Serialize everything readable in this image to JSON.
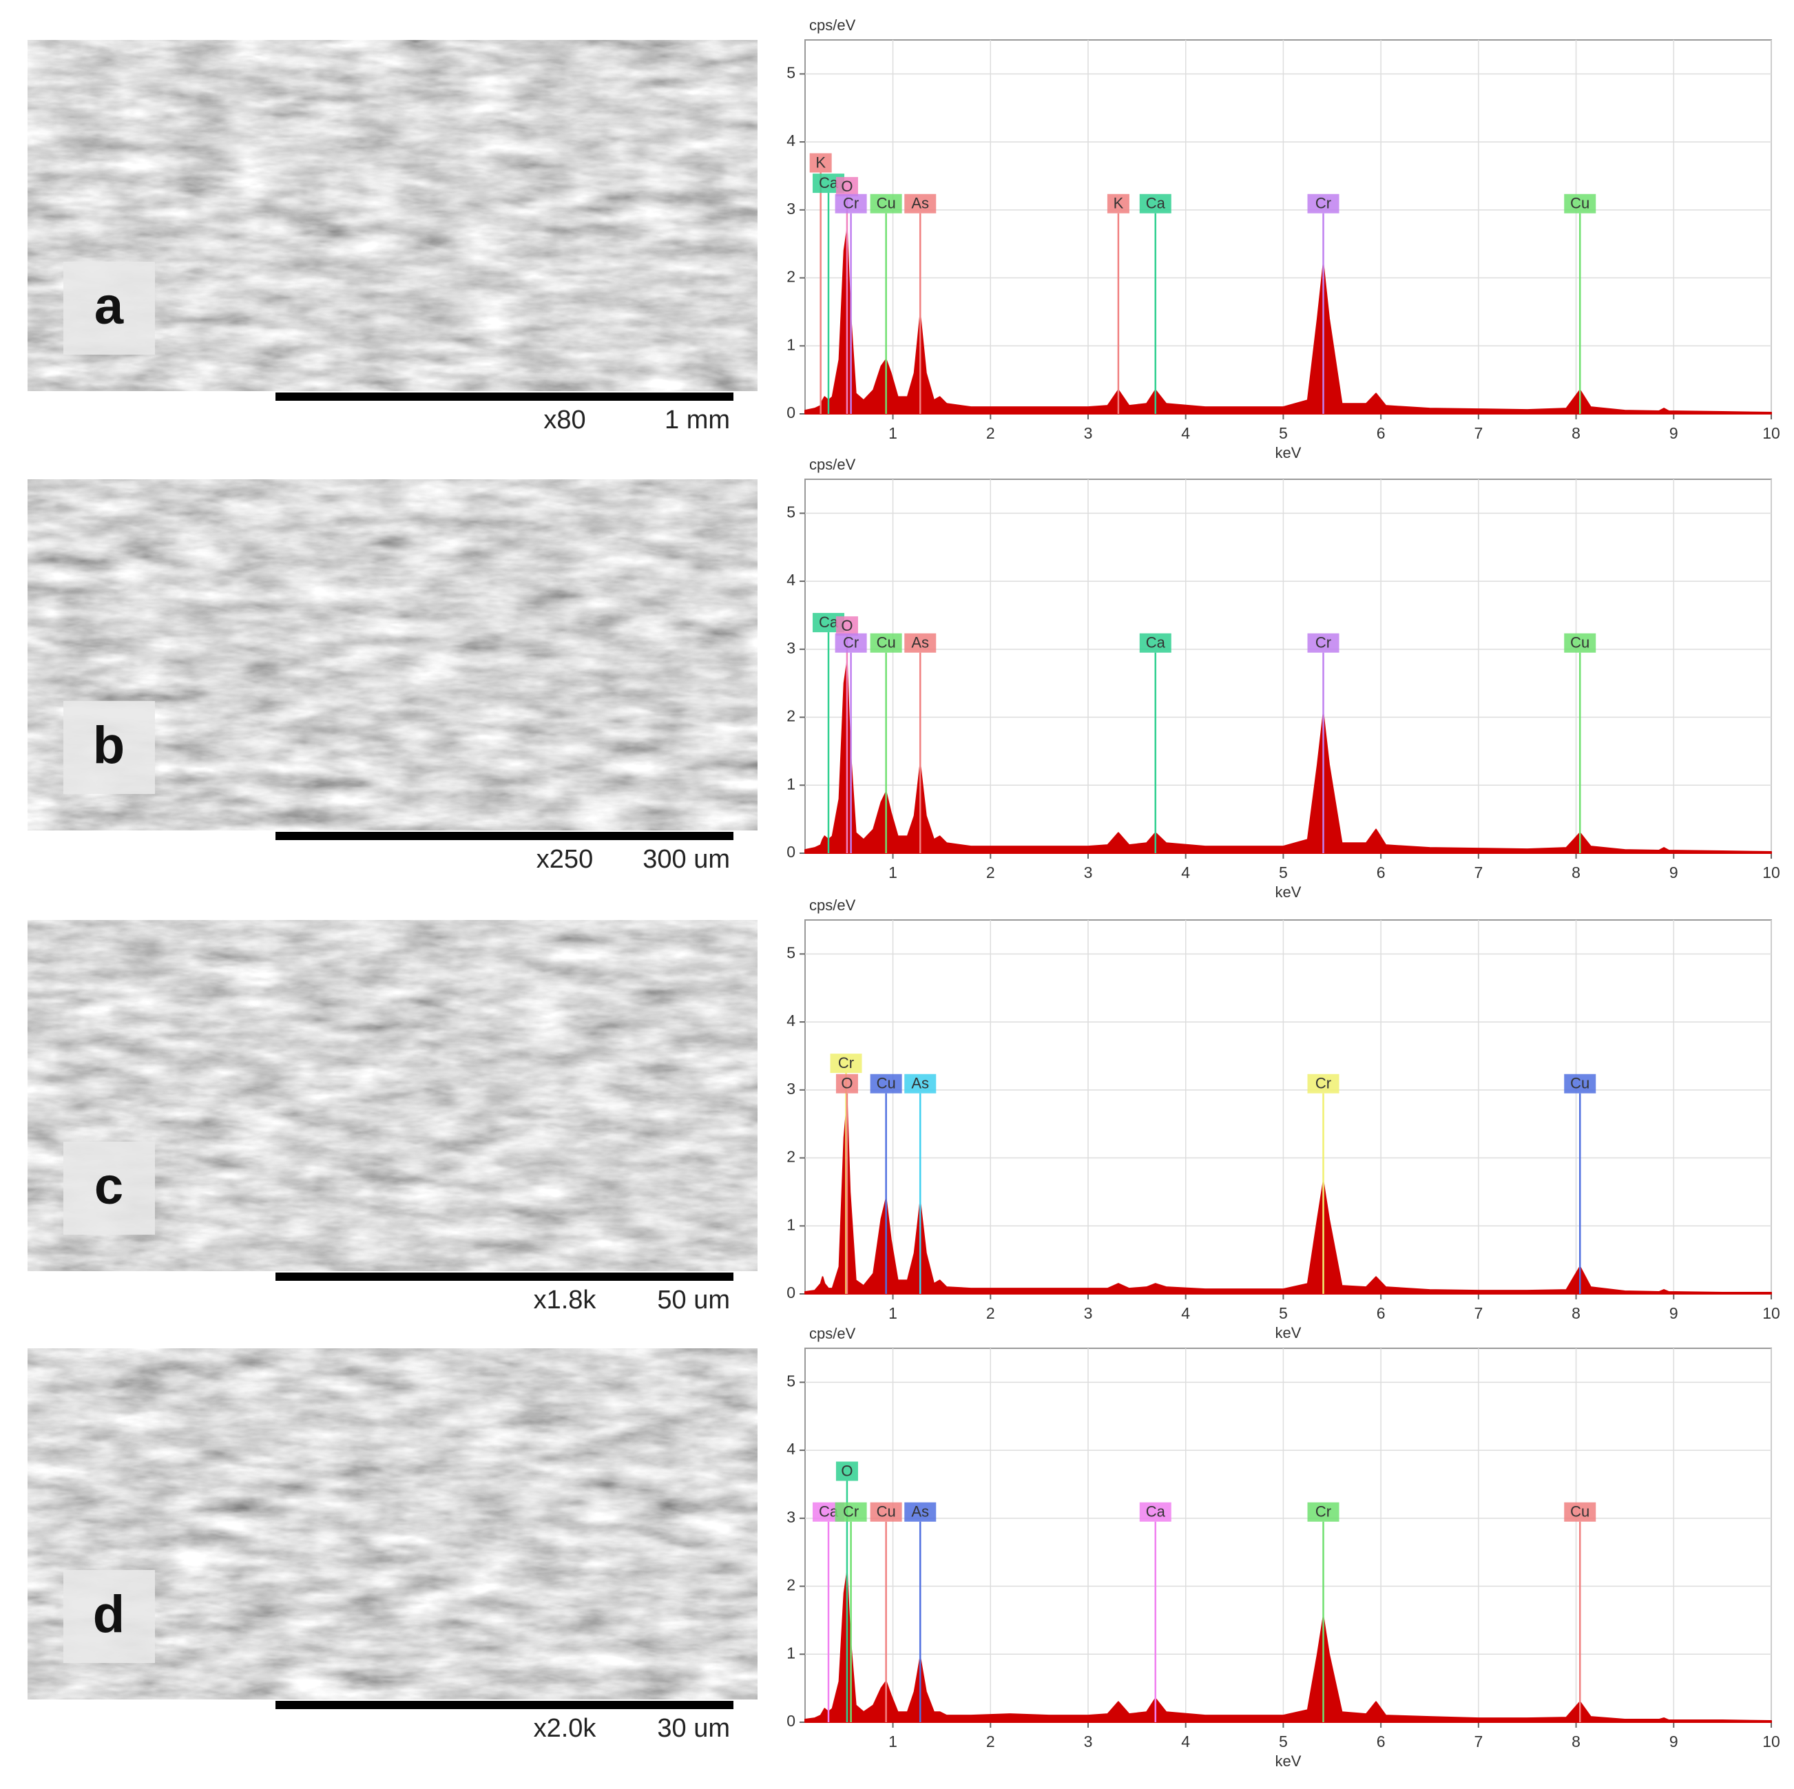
{
  "panels": [
    {
      "label": "a",
      "magnification": "x80",
      "scale": "1 mm"
    },
    {
      "label": "b",
      "magnification": "x250",
      "scale": "300 um"
    },
    {
      "label": "c",
      "magnification": "x1.8k",
      "scale": "50 um"
    },
    {
      "label": "d",
      "magnification": "x2.0k",
      "scale": "30 um"
    }
  ],
  "chart_data": [
    {
      "type": "area",
      "y_label": "cps/eV",
      "x_label": "keV",
      "color": "#d00000",
      "x": [
        0.1,
        0.2,
        0.26,
        0.28,
        0.3,
        0.34,
        0.38,
        0.45,
        0.5,
        0.53,
        0.56,
        0.62,
        0.7,
        0.8,
        0.88,
        0.93,
        0.98,
        1.05,
        1.15,
        1.22,
        1.28,
        1.34,
        1.42,
        1.48,
        1.55,
        1.8,
        2.2,
        2.6,
        3.0,
        3.2,
        3.31,
        3.42,
        3.6,
        3.69,
        3.8,
        4.2,
        4.6,
        5.0,
        5.25,
        5.35,
        5.41,
        5.47,
        5.6,
        5.85,
        5.95,
        6.05,
        6.5,
        7.0,
        7.5,
        7.9,
        8.04,
        8.15,
        8.5,
        8.85,
        8.9,
        8.95,
        9.5,
        10
      ],
      "values": [
        0.05,
        0.08,
        0.12,
        0.2,
        0.25,
        0.2,
        0.25,
        0.8,
        2.4,
        2.7,
        1.6,
        0.3,
        0.2,
        0.35,
        0.7,
        0.8,
        0.6,
        0.25,
        0.25,
        0.6,
        1.45,
        0.6,
        0.2,
        0.25,
        0.15,
        0.1,
        0.1,
        0.1,
        0.1,
        0.12,
        0.35,
        0.12,
        0.15,
        0.35,
        0.15,
        0.1,
        0.1,
        0.1,
        0.2,
        1.4,
        2.2,
        1.4,
        0.15,
        0.15,
        0.3,
        0.12,
        0.08,
        0.07,
        0.06,
        0.08,
        0.35,
        0.1,
        0.05,
        0.04,
        0.08,
        0.04,
        0.03,
        0.02
      ],
      "xlim": [
        0.1,
        10
      ],
      "ylim": [
        0,
        5.5
      ],
      "xticks": [
        1,
        2,
        3,
        4,
        5,
        6,
        7,
        8,
        9,
        10
      ],
      "yticks": [
        0,
        1,
        2,
        3,
        4,
        5
      ],
      "grid": true,
      "annotations": [
        {
          "text": "K",
          "x": 0.26,
          "y": 3.55,
          "color": "#f08080"
        },
        {
          "text": "Ca",
          "x": 0.34,
          "y": 3.25,
          "color": "#30d090"
        },
        {
          "text": "O",
          "x": 0.53,
          "y": 3.2,
          "color": "#f080c0"
        },
        {
          "text": "Cr",
          "x": 0.57,
          "y": 2.95,
          "color": "#c080f0"
        },
        {
          "text": "Cu",
          "x": 0.93,
          "y": 2.95,
          "color": "#70e070"
        },
        {
          "text": "As",
          "x": 1.28,
          "y": 2.95,
          "color": "#f08080"
        },
        {
          "text": "K",
          "x": 3.31,
          "y": 2.95,
          "color": "#f08080"
        },
        {
          "text": "Ca",
          "x": 3.69,
          "y": 2.95,
          "color": "#30d090"
        },
        {
          "text": "Cr",
          "x": 5.41,
          "y": 2.95,
          "color": "#c080f0"
        },
        {
          "text": "Cu",
          "x": 8.04,
          "y": 2.95,
          "color": "#70e070"
        }
      ]
    },
    {
      "type": "area",
      "y_label": "cps/eV",
      "x_label": "keV",
      "color": "#d00000",
      "x": [
        0.1,
        0.2,
        0.26,
        0.28,
        0.3,
        0.34,
        0.38,
        0.45,
        0.5,
        0.53,
        0.56,
        0.62,
        0.7,
        0.8,
        0.88,
        0.93,
        0.98,
        1.05,
        1.15,
        1.22,
        1.28,
        1.34,
        1.42,
        1.48,
        1.55,
        1.8,
        2.2,
        2.6,
        3.0,
        3.2,
        3.31,
        3.42,
        3.6,
        3.69,
        3.8,
        4.2,
        4.6,
        5.0,
        5.25,
        5.35,
        5.41,
        5.47,
        5.6,
        5.85,
        5.95,
        6.05,
        6.5,
        7.0,
        7.5,
        7.9,
        8.04,
        8.15,
        8.5,
        8.85,
        8.9,
        8.95,
        9.5,
        10
      ],
      "values": [
        0.05,
        0.08,
        0.12,
        0.2,
        0.25,
        0.2,
        0.25,
        0.8,
        2.5,
        2.8,
        1.6,
        0.3,
        0.2,
        0.35,
        0.75,
        0.9,
        0.6,
        0.25,
        0.25,
        0.55,
        1.3,
        0.55,
        0.2,
        0.25,
        0.15,
        0.1,
        0.1,
        0.1,
        0.1,
        0.12,
        0.3,
        0.12,
        0.15,
        0.3,
        0.15,
        0.1,
        0.1,
        0.1,
        0.2,
        1.3,
        2.05,
        1.3,
        0.15,
        0.15,
        0.35,
        0.12,
        0.08,
        0.07,
        0.06,
        0.08,
        0.3,
        0.1,
        0.05,
        0.04,
        0.08,
        0.04,
        0.03,
        0.02
      ],
      "xlim": [
        0.1,
        10
      ],
      "ylim": [
        0,
        5.5
      ],
      "xticks": [
        1,
        2,
        3,
        4,
        5,
        6,
        7,
        8,
        9,
        10
      ],
      "yticks": [
        0,
        1,
        2,
        3,
        4,
        5
      ],
      "grid": true,
      "annotations": [
        {
          "text": "Ca",
          "x": 0.34,
          "y": 3.25,
          "color": "#30d090"
        },
        {
          "text": "O",
          "x": 0.53,
          "y": 3.2,
          "color": "#f080c0"
        },
        {
          "text": "Cr",
          "x": 0.57,
          "y": 2.95,
          "color": "#c080f0"
        },
        {
          "text": "Cu",
          "x": 0.93,
          "y": 2.95,
          "color": "#70e070"
        },
        {
          "text": "As",
          "x": 1.28,
          "y": 2.95,
          "color": "#f08080"
        },
        {
          "text": "Ca",
          "x": 3.69,
          "y": 2.95,
          "color": "#30d090"
        },
        {
          "text": "Cr",
          "x": 5.41,
          "y": 2.95,
          "color": "#c080f0"
        },
        {
          "text": "Cu",
          "x": 8.04,
          "y": 2.95,
          "color": "#70e070"
        }
      ]
    },
    {
      "type": "area",
      "y_label": "cps/eV",
      "x_label": "keV",
      "color": "#d00000",
      "x": [
        0.1,
        0.2,
        0.26,
        0.28,
        0.3,
        0.34,
        0.38,
        0.45,
        0.5,
        0.53,
        0.56,
        0.62,
        0.7,
        0.8,
        0.88,
        0.93,
        0.98,
        1.05,
        1.15,
        1.22,
        1.28,
        1.34,
        1.42,
        1.48,
        1.55,
        1.8,
        2.2,
        2.6,
        3.0,
        3.2,
        3.31,
        3.42,
        3.6,
        3.69,
        3.8,
        4.2,
        4.6,
        5.0,
        5.25,
        5.35,
        5.41,
        5.47,
        5.6,
        5.85,
        5.95,
        6.05,
        6.5,
        7.0,
        7.5,
        7.9,
        8.04,
        8.15,
        8.5,
        8.85,
        8.9,
        8.95,
        9.5,
        10
      ],
      "values": [
        0.03,
        0.05,
        0.15,
        0.25,
        0.15,
        0.08,
        0.08,
        0.4,
        2.3,
        2.8,
        1.5,
        0.2,
        0.12,
        0.3,
        1.1,
        1.4,
        0.8,
        0.2,
        0.2,
        0.6,
        1.35,
        0.6,
        0.15,
        0.2,
        0.1,
        0.08,
        0.08,
        0.08,
        0.08,
        0.08,
        0.15,
        0.08,
        0.1,
        0.15,
        0.1,
        0.07,
        0.07,
        0.07,
        0.15,
        1.1,
        1.65,
        1.1,
        0.12,
        0.1,
        0.25,
        0.1,
        0.06,
        0.05,
        0.05,
        0.06,
        0.4,
        0.1,
        0.04,
        0.03,
        0.06,
        0.03,
        0.02,
        0.02
      ],
      "xlim": [
        0.1,
        10
      ],
      "ylim": [
        0,
        5.5
      ],
      "xticks": [
        1,
        2,
        3,
        4,
        5,
        6,
        7,
        8,
        9,
        10
      ],
      "yticks": [
        0,
        1,
        2,
        3,
        4,
        5
      ],
      "grid": true,
      "annotations": [
        {
          "text": "Cr",
          "x": 0.52,
          "y": 3.25,
          "color": "#f0f070"
        },
        {
          "text": "O",
          "x": 0.53,
          "y": 2.95,
          "color": "#f08080"
        },
        {
          "text": "Cu",
          "x": 0.93,
          "y": 2.95,
          "color": "#5070e0"
        },
        {
          "text": "As",
          "x": 1.28,
          "y": 2.95,
          "color": "#40d0f0"
        },
        {
          "text": "Cr",
          "x": 5.41,
          "y": 2.95,
          "color": "#f0f070"
        },
        {
          "text": "Cu",
          "x": 8.04,
          "y": 2.95,
          "color": "#5070e0"
        }
      ]
    },
    {
      "type": "area",
      "y_label": "cps/eV",
      "x_label": "keV",
      "color": "#d00000",
      "x": [
        0.1,
        0.2,
        0.26,
        0.28,
        0.3,
        0.34,
        0.38,
        0.45,
        0.5,
        0.53,
        0.56,
        0.62,
        0.7,
        0.8,
        0.88,
        0.93,
        0.98,
        1.05,
        1.15,
        1.22,
        1.28,
        1.34,
        1.42,
        1.48,
        1.55,
        1.8,
        2.2,
        2.6,
        3.0,
        3.2,
        3.31,
        3.42,
        3.6,
        3.69,
        3.8,
        4.2,
        4.6,
        5.0,
        5.25,
        5.35,
        5.41,
        5.47,
        5.6,
        5.85,
        5.95,
        6.05,
        6.5,
        7.0,
        7.5,
        7.9,
        8.04,
        8.15,
        8.5,
        8.85,
        8.9,
        8.95,
        9.5,
        10
      ],
      "values": [
        0.04,
        0.06,
        0.1,
        0.15,
        0.2,
        0.15,
        0.2,
        0.6,
        1.9,
        2.2,
        1.3,
        0.25,
        0.15,
        0.25,
        0.5,
        0.6,
        0.4,
        0.15,
        0.15,
        0.45,
        0.95,
        0.45,
        0.15,
        0.15,
        0.1,
        0.1,
        0.12,
        0.1,
        0.1,
        0.12,
        0.3,
        0.12,
        0.15,
        0.35,
        0.15,
        0.1,
        0.1,
        0.1,
        0.18,
        1.0,
        1.55,
        1.0,
        0.15,
        0.12,
        0.3,
        0.1,
        0.08,
        0.06,
        0.06,
        0.07,
        0.3,
        0.08,
        0.04,
        0.04,
        0.06,
        0.03,
        0.03,
        0.02
      ],
      "xlim": [
        0.1,
        10
      ],
      "ylim": [
        0,
        5.5
      ],
      "xticks": [
        1,
        2,
        3,
        4,
        5,
        6,
        7,
        8,
        9,
        10
      ],
      "yticks": [
        0,
        1,
        2,
        3,
        4,
        5
      ],
      "grid": true,
      "annotations": [
        {
          "text": "O",
          "x": 0.53,
          "y": 3.55,
          "color": "#30d090"
        },
        {
          "text": "Ca",
          "x": 0.34,
          "y": 2.95,
          "color": "#f080f0"
        },
        {
          "text": "Cr",
          "x": 0.57,
          "y": 2.95,
          "color": "#70e070"
        },
        {
          "text": "Cu",
          "x": 0.93,
          "y": 2.95,
          "color": "#f08080"
        },
        {
          "text": "As",
          "x": 1.28,
          "y": 2.95,
          "color": "#5070e0"
        },
        {
          "text": "Ca",
          "x": 3.69,
          "y": 2.95,
          "color": "#f080f0"
        },
        {
          "text": "Cr",
          "x": 5.41,
          "y": 2.95,
          "color": "#70e070"
        },
        {
          "text": "Cu",
          "x": 8.04,
          "y": 2.95,
          "color": "#f08080"
        }
      ]
    }
  ]
}
